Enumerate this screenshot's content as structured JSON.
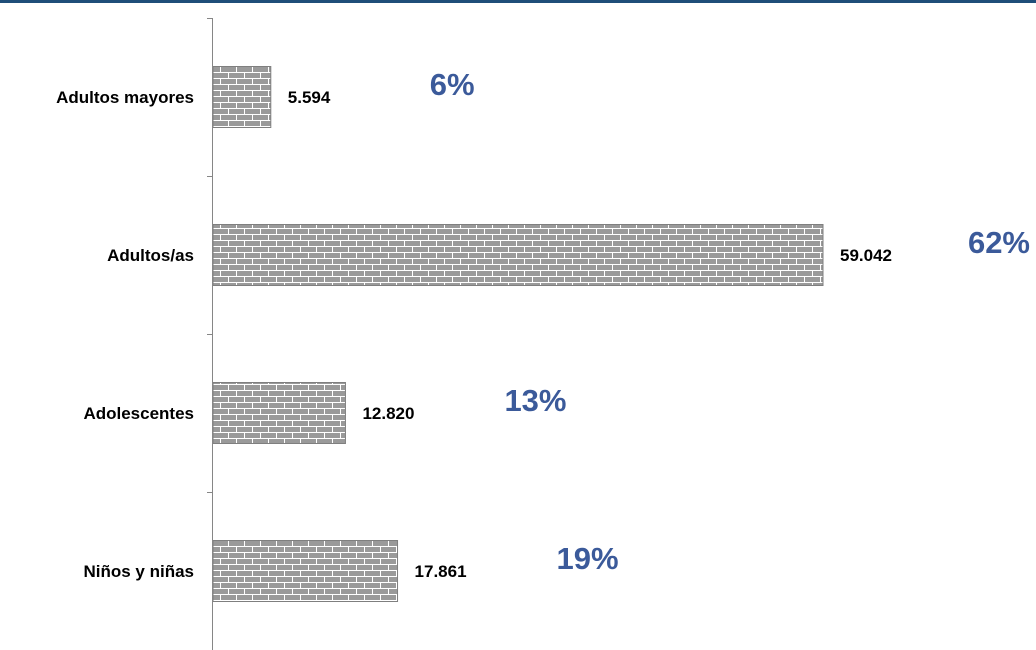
{
  "chart_data": {
    "type": "bar",
    "orientation": "horizontal",
    "categories": [
      "Niños y niñas",
      "Adolescentes",
      "Adultos/as",
      "Adultos mayores"
    ],
    "values": [
      17861,
      12820,
      59042,
      5594
    ],
    "value_labels": [
      "17.861",
      "12.820",
      "59.042",
      "5.594"
    ],
    "percent_labels": [
      "19%",
      "13%",
      "62%",
      "6%"
    ],
    "title": "",
    "xlabel": "",
    "ylabel": "",
    "grid": false,
    "legend": "none",
    "colors": {
      "top_rule": "#1f4e79",
      "bar_fill": "#9a9a9a",
      "bar_mortar": "#ffffff",
      "bar_border": "#7f7f7f",
      "axis": "#868686",
      "category_text": "#000000",
      "value_text": "#000000",
      "percent_text": "#3b5a9a"
    }
  }
}
